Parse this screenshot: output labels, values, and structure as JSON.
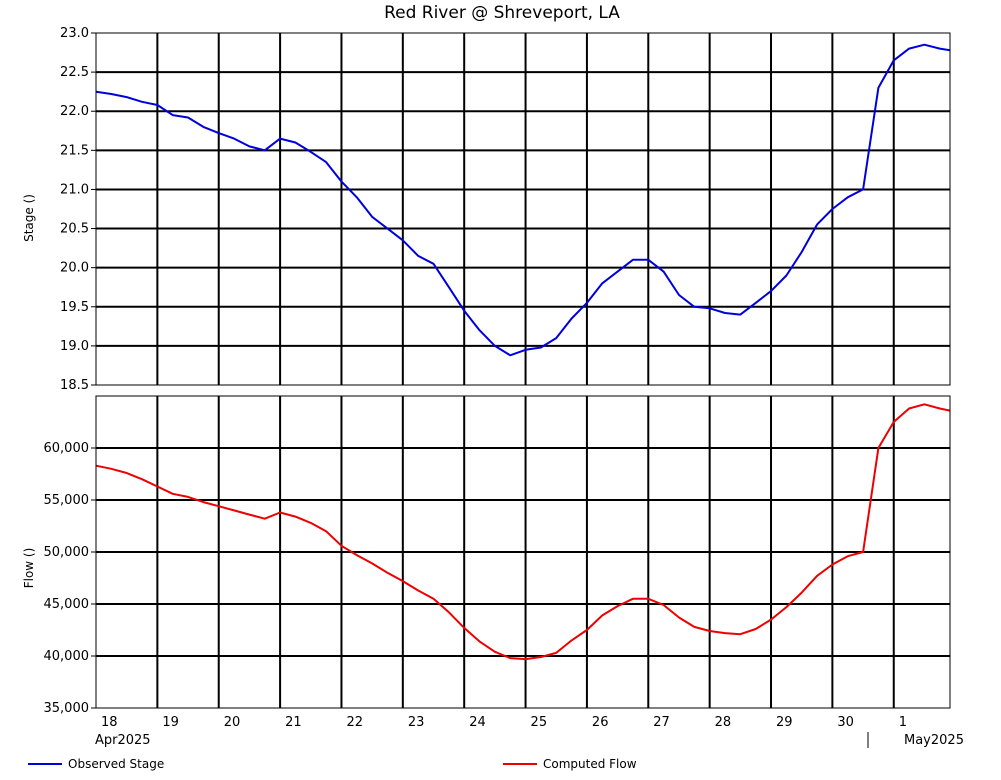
{
  "title": "Red River @ Shreveport, LA",
  "x_axis": {
    "day_labels": [
      "18",
      "19",
      "20",
      "21",
      "22",
      "23",
      "24",
      "25",
      "26",
      "27",
      "28",
      "29",
      "30",
      "1"
    ],
    "month_left": "Apr2025",
    "month_right": "May2025"
  },
  "legend": {
    "stage": "Observed Stage",
    "flow": "Computed Flow"
  },
  "colors": {
    "stage": "#0000dd",
    "flow": "#ee0000",
    "grid": "#000000"
  },
  "chart_data": [
    {
      "type": "line",
      "ylabel": "Stage ()",
      "ylim": [
        18.5,
        23.0
      ],
      "yticks": [
        "23.0",
        "22.5",
        "22.0",
        "21.5",
        "21.0",
        "20.5",
        "20.0",
        "19.5",
        "19.0",
        "18.5"
      ],
      "xlim_days": [
        "2025-04-18T00:00",
        "2025-05-01T22:00"
      ],
      "series": [
        {
          "name": "Observed Stage",
          "x": [
            "2025-04-18T00:00",
            "2025-04-18T06:00",
            "2025-04-18T12:00",
            "2025-04-18T18:00",
            "2025-04-19T00:00",
            "2025-04-19T06:00",
            "2025-04-19T12:00",
            "2025-04-19T18:00",
            "2025-04-20T00:00",
            "2025-04-20T06:00",
            "2025-04-20T12:00",
            "2025-04-20T18:00",
            "2025-04-21T00:00",
            "2025-04-21T06:00",
            "2025-04-21T12:00",
            "2025-04-21T18:00",
            "2025-04-22T00:00",
            "2025-04-22T06:00",
            "2025-04-22T12:00",
            "2025-04-22T18:00",
            "2025-04-23T00:00",
            "2025-04-23T06:00",
            "2025-04-23T12:00",
            "2025-04-23T18:00",
            "2025-04-24T00:00",
            "2025-04-24T06:00",
            "2025-04-24T12:00",
            "2025-04-24T18:00",
            "2025-04-25T00:00",
            "2025-04-25T06:00",
            "2025-04-25T12:00",
            "2025-04-25T18:00",
            "2025-04-26T00:00",
            "2025-04-26T06:00",
            "2025-04-26T12:00",
            "2025-04-26T18:00",
            "2025-04-27T00:00",
            "2025-04-27T06:00",
            "2025-04-27T12:00",
            "2025-04-27T18:00",
            "2025-04-28T00:00",
            "2025-04-28T06:00",
            "2025-04-28T12:00",
            "2025-04-28T18:00",
            "2025-04-29T00:00",
            "2025-04-29T06:00",
            "2025-04-29T12:00",
            "2025-04-29T18:00",
            "2025-04-30T00:00",
            "2025-04-30T06:00",
            "2025-04-30T12:00",
            "2025-04-30T18:00",
            "2025-05-01T00:00",
            "2025-05-01T06:00",
            "2025-05-01T12:00",
            "2025-05-01T18:00",
            "2025-05-01T22:00"
          ],
          "values": [
            22.25,
            22.22,
            22.18,
            22.12,
            22.08,
            21.95,
            21.92,
            21.8,
            21.72,
            21.65,
            21.55,
            21.5,
            21.65,
            21.6,
            21.48,
            21.35,
            21.1,
            20.9,
            20.65,
            20.5,
            20.35,
            20.15,
            20.05,
            19.75,
            19.45,
            19.2,
            19.0,
            18.88,
            18.95,
            18.98,
            19.1,
            19.35,
            19.55,
            19.8,
            19.95,
            20.1,
            20.1,
            19.95,
            19.65,
            19.5,
            19.48,
            19.42,
            19.4,
            19.55,
            19.7,
            19.9,
            20.2,
            20.55,
            20.75,
            20.9,
            21.0,
            22.3,
            22.65,
            22.8,
            22.85,
            22.8,
            22.78
          ]
        }
      ]
    },
    {
      "type": "line",
      "ylabel": "Flow ()",
      "ylim": [
        35000,
        65000
      ],
      "yticks": [
        "60,000",
        "55,000",
        "50,000",
        "45,000",
        "40,000",
        "35,000"
      ],
      "xlim_days": [
        "2025-04-18T00:00",
        "2025-05-01T22:00"
      ],
      "series": [
        {
          "name": "Computed Flow",
          "x": [
            "2025-04-18T00:00",
            "2025-04-18T06:00",
            "2025-04-18T12:00",
            "2025-04-18T18:00",
            "2025-04-19T00:00",
            "2025-04-19T06:00",
            "2025-04-19T12:00",
            "2025-04-19T18:00",
            "2025-04-20T00:00",
            "2025-04-20T06:00",
            "2025-04-20T12:00",
            "2025-04-20T18:00",
            "2025-04-21T00:00",
            "2025-04-21T06:00",
            "2025-04-21T12:00",
            "2025-04-21T18:00",
            "2025-04-22T00:00",
            "2025-04-22T06:00",
            "2025-04-22T12:00",
            "2025-04-22T18:00",
            "2025-04-23T00:00",
            "2025-04-23T06:00",
            "2025-04-23T12:00",
            "2025-04-23T18:00",
            "2025-04-24T00:00",
            "2025-04-24T06:00",
            "2025-04-24T12:00",
            "2025-04-24T18:00",
            "2025-04-25T00:00",
            "2025-04-25T06:00",
            "2025-04-25T12:00",
            "2025-04-25T18:00",
            "2025-04-26T00:00",
            "2025-04-26T06:00",
            "2025-04-26T12:00",
            "2025-04-26T18:00",
            "2025-04-27T00:00",
            "2025-04-27T06:00",
            "2025-04-27T12:00",
            "2025-04-27T18:00",
            "2025-04-28T00:00",
            "2025-04-28T06:00",
            "2025-04-28T12:00",
            "2025-04-28T18:00",
            "2025-04-29T00:00",
            "2025-04-29T06:00",
            "2025-04-29T12:00",
            "2025-04-29T18:00",
            "2025-04-30T00:00",
            "2025-04-30T06:00",
            "2025-04-30T12:00",
            "2025-04-30T18:00",
            "2025-05-01T00:00",
            "2025-05-01T06:00",
            "2025-05-01T12:00",
            "2025-05-01T18:00",
            "2025-05-01T22:00"
          ],
          "values": [
            58300,
            58000,
            57600,
            57000,
            56300,
            55600,
            55300,
            54800,
            54400,
            54000,
            53600,
            53200,
            53800,
            53400,
            52800,
            52000,
            50600,
            49700,
            48900,
            48000,
            47200,
            46300,
            45500,
            44200,
            42700,
            41400,
            40400,
            39800,
            39700,
            39900,
            40300,
            41500,
            42500,
            43900,
            44800,
            45500,
            45500,
            44900,
            43700,
            42800,
            42400,
            42200,
            42100,
            42600,
            43500,
            44700,
            46100,
            47700,
            48800,
            49600,
            50000,
            60000,
            62500,
            63800,
            64200,
            63800,
            63600
          ]
        }
      ]
    }
  ]
}
